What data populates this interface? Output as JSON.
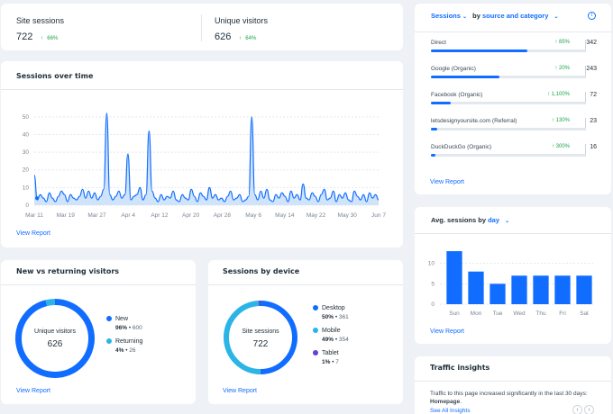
{
  "kpis": {
    "site_sessions": {
      "label": "Site sessions",
      "value": "722",
      "change": "66%"
    },
    "unique_visitors": {
      "label": "Unique visitors",
      "value": "626",
      "change": "64%"
    }
  },
  "sessions_over_time": {
    "title": "Sessions over time",
    "view_report": "View Report",
    "chart_data": {
      "type": "area",
      "title": "Sessions over time",
      "ylim": [
        0,
        55
      ],
      "y_ticks": [
        0,
        10,
        20,
        30,
        40,
        50
      ],
      "x_ticks": [
        "Mar 11",
        "Mar 19",
        "Mar 27",
        "Apr 4",
        "Apr 12",
        "Apr 20",
        "Apr 28",
        "May 6",
        "May 14",
        "May 22",
        "May 30",
        "Jun 7"
      ],
      "values": [
        17,
        3,
        6,
        4,
        2,
        7,
        4,
        2,
        5,
        8,
        6,
        2,
        6,
        4,
        3,
        5,
        9,
        4,
        8,
        4,
        7,
        3,
        5,
        9,
        52,
        6,
        3,
        5,
        8,
        4,
        6,
        29,
        3,
        5,
        6,
        10,
        3,
        6,
        42,
        8,
        4,
        2,
        6,
        3,
        5,
        4,
        8,
        3,
        2,
        6,
        4,
        3,
        9,
        5,
        2,
        7,
        5,
        3,
        10,
        4,
        6,
        3,
        4,
        2,
        5,
        8,
        3,
        4,
        6,
        2,
        3,
        5,
        50,
        6,
        3,
        8,
        4,
        9,
        3,
        2,
        6,
        4,
        7,
        5,
        2,
        8,
        4,
        6,
        3,
        12,
        4,
        3,
        7,
        5,
        2,
        6,
        9,
        3,
        4,
        8,
        2,
        6,
        4,
        7,
        3,
        2,
        8,
        5,
        3,
        6,
        2,
        7,
        4,
        6,
        3
      ]
    }
  },
  "new_vs_returning": {
    "title": "New vs returning visitors",
    "center_label": "Unique visitors",
    "center_value": "626",
    "view_report": "View Report",
    "chart_data": {
      "type": "pie",
      "series": [
        {
          "name": "New",
          "pct": "96%",
          "count": "600",
          "value": 96,
          "color": "#116dff"
        },
        {
          "name": "Returning",
          "pct": "4%",
          "count": "26",
          "value": 4,
          "color": "#2bb4e6"
        }
      ]
    }
  },
  "sessions_by_device": {
    "title": "Sessions by device",
    "center_label": "Site sessions",
    "center_value": "722",
    "view_report": "View Report",
    "chart_data": {
      "type": "pie",
      "series": [
        {
          "name": "Desktop",
          "pct": "50%",
          "count": "361",
          "value": 50,
          "color": "#116dff"
        },
        {
          "name": "Mobile",
          "pct": "49%",
          "count": "354",
          "value": 49,
          "color": "#2bb4e6"
        },
        {
          "name": "Tablet",
          "pct": "1%",
          "count": "7",
          "value": 1,
          "color": "#6640d6"
        }
      ]
    }
  },
  "sessions_by_source": {
    "title_prefix": "Sessions",
    "title_mid": "by",
    "title_dimension": "source and category",
    "view_report": "View Report",
    "sources": [
      {
        "name": "Direct",
        "change": "85%",
        "value": "342",
        "frac": 1.0
      },
      {
        "name": "Google (Organic)",
        "change": "20%",
        "value": "243",
        "frac": 0.71
      },
      {
        "name": "Facebook (Organic)",
        "change": "1,100%",
        "value": "72",
        "frac": 0.21
      },
      {
        "name": "letsdesignyoursite.com (Referral)",
        "change": "130%",
        "value": "23",
        "frac": 0.07
      },
      {
        "name": "DuckDuckGo (Organic)",
        "change": "300%",
        "value": "16",
        "frac": 0.05
      }
    ]
  },
  "avg_sessions": {
    "title_prefix": "Avg. sessions by",
    "title_dimension": "day",
    "view_report": "View Report",
    "chart_data": {
      "type": "bar",
      "categories": [
        "Sun",
        "Mon",
        "Tue",
        "Wed",
        "Thu",
        "Fri",
        "Sat"
      ],
      "values": [
        13,
        8,
        5,
        7,
        7,
        7,
        7
      ],
      "ylim": [
        0,
        15
      ],
      "y_ticks": [
        0,
        5,
        10
      ]
    }
  },
  "traffic_insights": {
    "title": "Traffic insights",
    "text": "Traffic to this page increased significantly in the last 30 days:",
    "page": "Homepage",
    "link": "See All Insights"
  }
}
